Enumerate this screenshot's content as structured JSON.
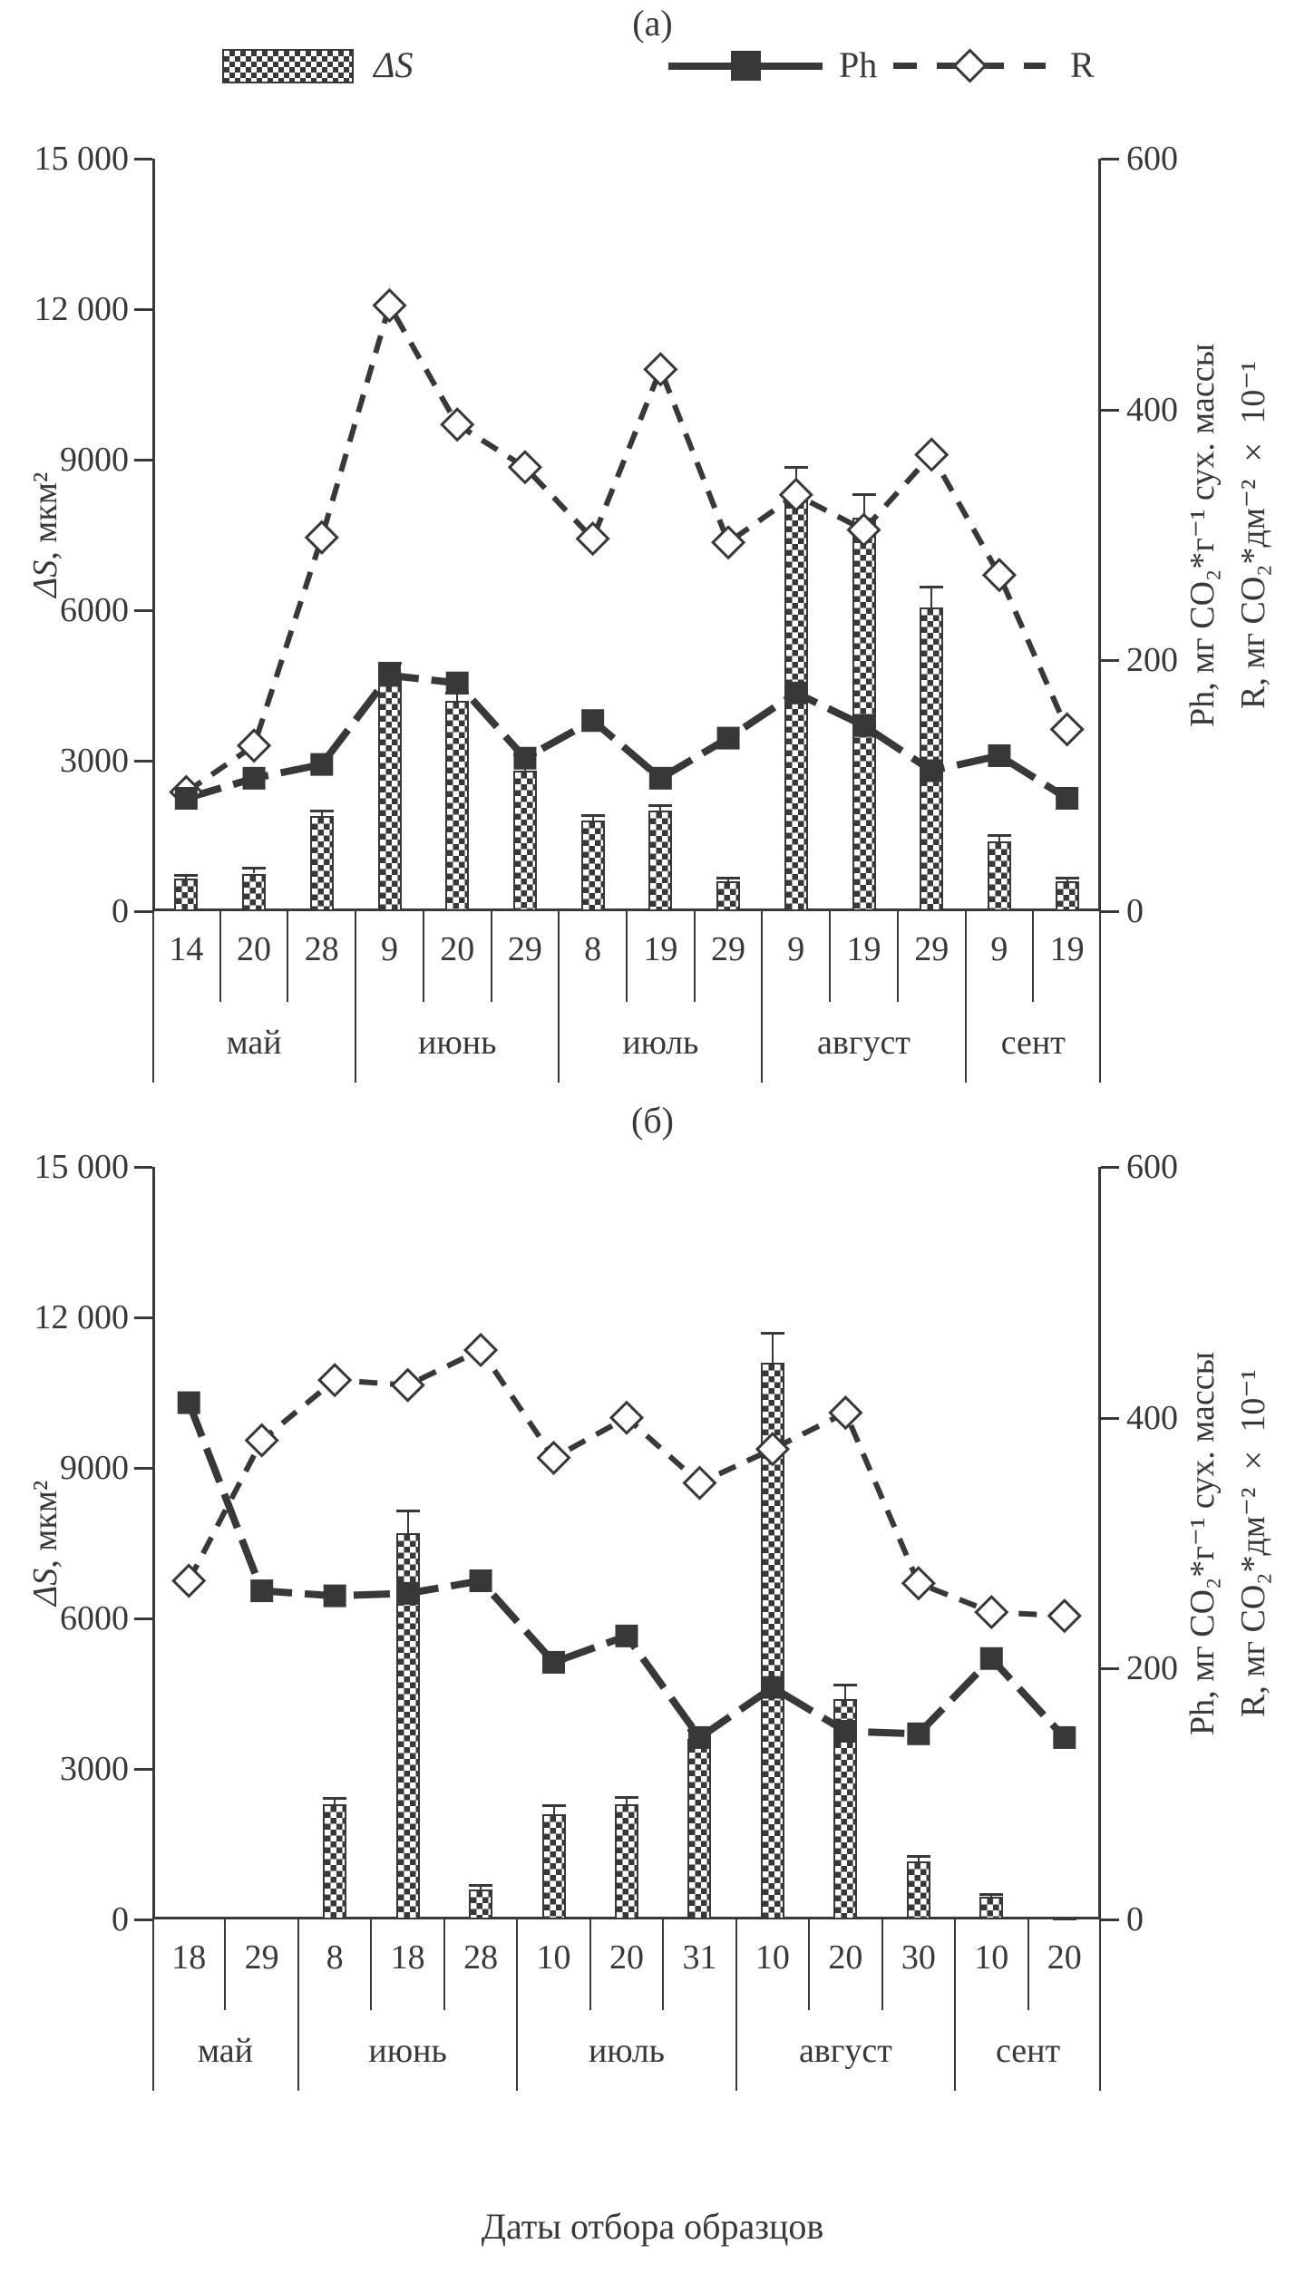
{
  "caption": "Даты отбора образцов",
  "colors": {
    "ink": "#383838",
    "background": "#ffffff",
    "marker_fill": "#ffffff"
  },
  "legend": {
    "items": [
      {
        "id": "ds",
        "label": "ΔS",
        "swatch": "checkered-bar"
      },
      {
        "id": "ph",
        "label": "Ph",
        "swatch": "solid-line-filled-square"
      },
      {
        "id": "r",
        "label": "R",
        "swatch": "dashed-line-open-diamond"
      }
    ]
  },
  "axes": {
    "left_label_symbol": "ΔS",
    "left_label_rest": ", мкм²",
    "left_max": 15000,
    "left_ticks": [
      {
        "v": 15000,
        "t": "15 000"
      },
      {
        "v": 12000,
        "t": "12 000"
      },
      {
        "v": 9000,
        "t": "9000"
      },
      {
        "v": 6000,
        "t": "6000"
      },
      {
        "v": 3000,
        "t": "3000"
      },
      {
        "v": 0,
        "t": "0"
      }
    ],
    "right_max": 600,
    "right_ticks": [
      {
        "v": 600,
        "t": "600"
      },
      {
        "v": 400,
        "t": "400"
      },
      {
        "v": 200,
        "t": "200"
      },
      {
        "v": 0,
        "t": "0"
      }
    ],
    "right_label_line1": "Ph, мг CO₂*г⁻¹ сух. массы",
    "right_label_line2": "R, мг CO₂*дм⁻² × 10⁻¹"
  },
  "chart_data": [
    {
      "type": "bar+line",
      "title": "(а)",
      "xlabel": "Даты отбора образцов",
      "ylabel_left": "ΔS, мкм²",
      "ylabel_right": "Ph, мг CO₂*г⁻¹ сух. массы; R, мг CO₂*дм⁻² × 10⁻¹",
      "ylim_left": [
        0,
        15000
      ],
      "ylim_right": [
        0,
        600
      ],
      "x_groups": [
        {
          "month": "май",
          "dates": [
            "14",
            "20",
            "28"
          ]
        },
        {
          "month": "июнь",
          "dates": [
            "9",
            "20",
            "29"
          ]
        },
        {
          "month": "июль",
          "dates": [
            "8",
            "19",
            "29"
          ]
        },
        {
          "month": "август",
          "dates": [
            "9",
            "19",
            "29"
          ]
        },
        {
          "month": "сент",
          "dates": [
            "9",
            "19"
          ]
        }
      ],
      "series": [
        {
          "name": "ΔS",
          "type": "bar",
          "axis": "left",
          "values": [
            650,
            750,
            1900,
            4750,
            4200,
            2800,
            1800,
            2000,
            600,
            8300,
            7850,
            6050,
            1400,
            600
          ],
          "errors": [
            80,
            120,
            100,
            200,
            160,
            320,
            110,
            110,
            70,
            560,
            460,
            420,
            110,
            70
          ]
        },
        {
          "name": "Ph",
          "type": "line-square",
          "axis": "right",
          "values": [
            90,
            106,
            117,
            188,
            182,
            122,
            152,
            106,
            138,
            174,
            148,
            112,
            124,
            90
          ]
        },
        {
          "name": "R",
          "type": "dashed-line-diamond",
          "axis": "right",
          "values": [
            95,
            132,
            298,
            483,
            388,
            354,
            297,
            432,
            294,
            332,
            304,
            364,
            268,
            145
          ]
        }
      ]
    },
    {
      "type": "bar+line",
      "title": "(б)",
      "xlabel": "Даты отбора образцов",
      "ylabel_left": "ΔS, мкм²",
      "ylabel_right": "Ph, мг CO₂*г⁻¹ сух. массы; R, мг CO₂*дм⁻² × 10⁻¹",
      "ylim_left": [
        0,
        15000
      ],
      "ylim_right": [
        0,
        600
      ],
      "x_groups": [
        {
          "month": "май",
          "dates": [
            "18",
            "29"
          ]
        },
        {
          "month": "июнь",
          "dates": [
            "8",
            "18",
            "28"
          ]
        },
        {
          "month": "июль",
          "dates": [
            "10",
            "20",
            "31"
          ]
        },
        {
          "month": "август",
          "dates": [
            "10",
            "20",
            "30"
          ]
        },
        {
          "month": "сент",
          "dates": [
            "10",
            "20"
          ]
        }
      ],
      "series": [
        {
          "name": "ΔS",
          "type": "bar",
          "axis": "left",
          "values": [
            0,
            0,
            2300,
            7700,
            600,
            2100,
            2300,
            3600,
            11100,
            4400,
            1150,
            450,
            60
          ],
          "errors": [
            0,
            0,
            130,
            450,
            80,
            180,
            140,
            180,
            600,
            280,
            120,
            60,
            0
          ]
        },
        {
          "name": "Ph",
          "type": "line-square",
          "axis": "right",
          "values": [
            412,
            262,
            258,
            260,
            270,
            205,
            226,
            145,
            185,
            150,
            148,
            208,
            145
          ]
        },
        {
          "name": "R",
          "type": "dashed-line-diamond",
          "axis": "right",
          "values": [
            270,
            382,
            430,
            426,
            454,
            368,
            400,
            348,
            375,
            404,
            268,
            245,
            242
          ]
        }
      ]
    }
  ]
}
